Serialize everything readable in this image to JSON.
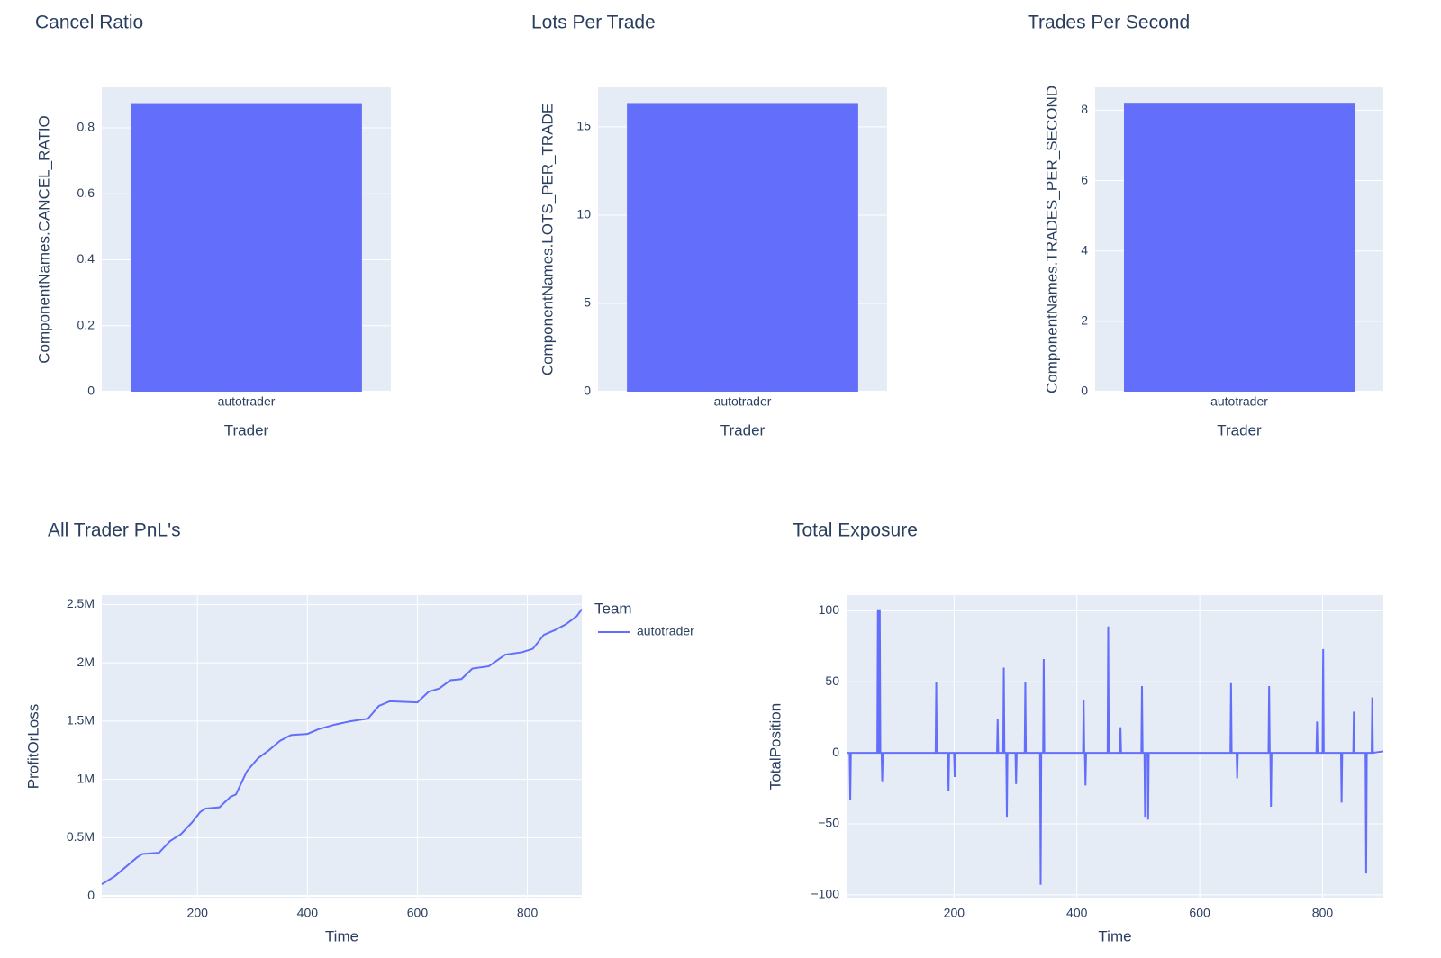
{
  "chart_data": [
    {
      "type": "bar",
      "title": "Cancel Ratio",
      "x_label": "Trader",
      "y_label": "ComponentNames.CANCEL_RATIO",
      "categories": [
        "autotrader"
      ],
      "values": [
        0.875
      ],
      "color": "#636efa",
      "ylim": [
        0,
        0.923
      ],
      "yticks": [
        0,
        0.2,
        0.4,
        0.6,
        0.8
      ],
      "grid": true
    },
    {
      "type": "bar",
      "title": "Lots Per Trade",
      "x_label": "Trader",
      "y_label": "ComponentNames.LOTS_PER_TRADE",
      "categories": [
        "autotrader"
      ],
      "values": [
        16.35
      ],
      "color": "#636efa",
      "ylim": [
        0,
        17.24
      ],
      "yticks": [
        0,
        5,
        10,
        15
      ],
      "grid": true
    },
    {
      "type": "bar",
      "title": "Trades Per Second",
      "x_label": "Trader",
      "y_label": "ComponentNames.TRADES_PER_SECOND",
      "categories": [
        "autotrader"
      ],
      "values": [
        8.21
      ],
      "color": "#636efa",
      "ylim": [
        0,
        8.65
      ],
      "yticks": [
        0,
        2,
        4,
        6,
        8
      ],
      "grid": true
    },
    {
      "type": "line",
      "title": "All Trader PnL's",
      "x_label": "Time",
      "y_label": "ProfitOrLoss",
      "legend_title": "Team",
      "x": [
        26,
        50,
        70,
        90,
        100,
        130,
        150,
        170,
        190,
        205,
        215,
        240,
        260,
        270,
        280,
        290,
        310,
        330,
        350,
        370,
        400,
        420,
        450,
        480,
        510,
        530,
        550,
        600,
        620,
        640,
        660,
        680,
        700,
        730,
        760,
        790,
        810,
        830,
        850,
        870,
        890,
        899
      ],
      "series": [
        {
          "name": "autotrader",
          "color": "#636efa",
          "values": [
            100000,
            170000,
            250000,
            330000,
            360000,
            370000,
            470000,
            530000,
            630000,
            720000,
            750000,
            760000,
            850000,
            870000,
            970000,
            1070000,
            1180000,
            1250000,
            1330000,
            1380000,
            1390000,
            1430000,
            1470000,
            1500000,
            1520000,
            1630000,
            1670000,
            1660000,
            1750000,
            1780000,
            1850000,
            1860000,
            1950000,
            1970000,
            2070000,
            2090000,
            2120000,
            2240000,
            2280000,
            2330000,
            2400000,
            2460000
          ]
        }
      ],
      "xlim": [
        26,
        899
      ],
      "xticks": [
        200,
        400,
        600,
        800
      ],
      "ylim": [
        -15000,
        2580000
      ],
      "yticks": [
        0,
        {
          "value": 500000,
          "label": "0.5M"
        },
        {
          "value": 1000000,
          "label": "1M"
        },
        {
          "value": 1500000,
          "label": "1.5M"
        },
        {
          "value": 2000000,
          "label": "2M"
        },
        {
          "value": 2500000,
          "label": "2.5M"
        }
      ],
      "grid": true
    },
    {
      "type": "line",
      "title": "Total Exposure",
      "x_label": "Time",
      "y_label": "TotalPosition",
      "x": [
        25,
        30,
        31,
        32,
        75,
        76,
        77,
        78,
        79,
        80,
        82,
        83,
        84,
        170,
        171,
        172,
        190,
        191,
        192,
        200,
        201,
        202,
        270,
        271,
        272,
        280,
        281,
        282,
        285,
        286,
        287,
        300,
        301,
        302,
        315,
        316,
        317,
        340,
        341,
        342,
        345,
        346,
        347,
        410,
        411,
        412,
        413,
        414,
        415,
        450,
        451,
        452,
        470,
        471,
        472,
        505,
        506,
        507,
        510,
        511,
        512,
        515,
        516,
        517,
        650,
        651,
        652,
        660,
        661,
        662,
        712,
        713,
        714,
        715,
        716,
        717,
        790,
        791,
        792,
        800,
        801,
        802,
        830,
        831,
        832,
        850,
        851,
        852,
        870,
        871,
        872,
        880,
        881,
        882,
        899
      ],
      "series": [
        {
          "color": "#636efa",
          "values": [
            0,
            0,
            -33,
            0,
            0,
            101,
            0,
            0,
            101,
            0,
            0,
            -20,
            0,
            0,
            50,
            0,
            0,
            -27,
            0,
            0,
            -17,
            0,
            0,
            24,
            0,
            0,
            60,
            0,
            0,
            -45,
            0,
            0,
            -22,
            0,
            0,
            50,
            0,
            0,
            -93,
            0,
            0,
            66,
            0,
            0,
            37,
            0,
            0,
            -23,
            0,
            0,
            89,
            0,
            0,
            18,
            0,
            0,
            47,
            0,
            0,
            -45,
            0,
            0,
            -47,
            0,
            0,
            49,
            0,
            0,
            -18,
            0,
            0,
            47,
            0,
            0,
            -38,
            0,
            0,
            22,
            0,
            0,
            73,
            0,
            0,
            -35,
            0,
            0,
            29,
            0,
            0,
            -85,
            0,
            0,
            39,
            0,
            1
          ]
        }
      ],
      "xlim": [
        25,
        899
      ],
      "xticks": [
        200,
        400,
        600,
        800
      ],
      "ylim": [
        -102,
        111
      ],
      "yticks": [
        {
          "value": -100,
          "label": "−100"
        },
        {
          "value": -50,
          "label": "−50"
        },
        0,
        50,
        100
      ],
      "grid": true
    }
  ]
}
